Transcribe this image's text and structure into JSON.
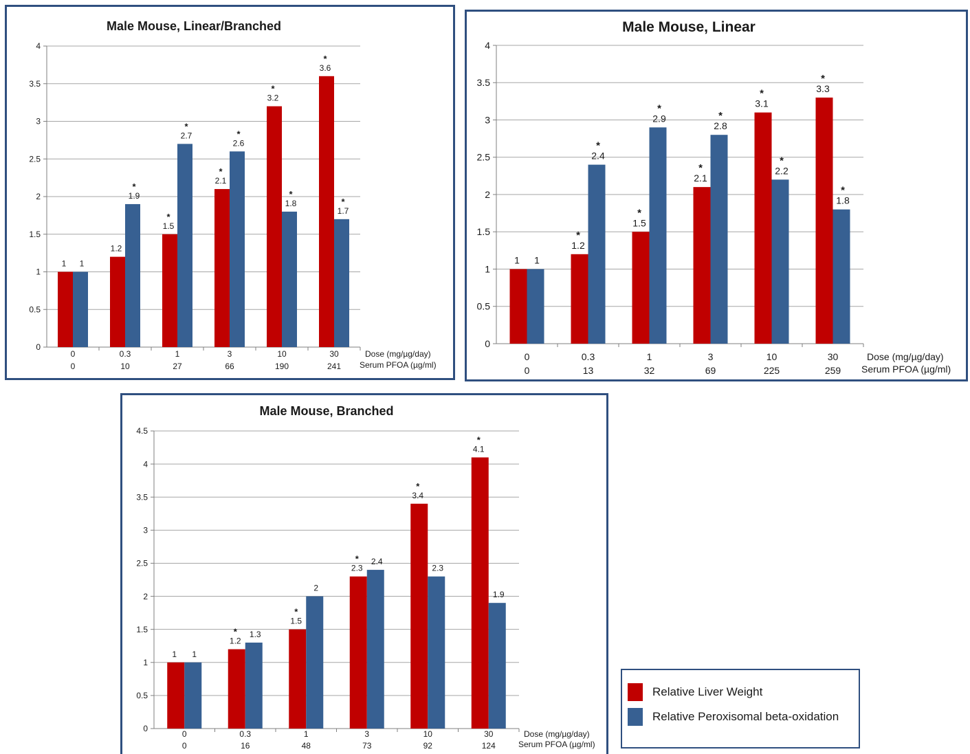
{
  "colors": {
    "liver": "#c00000",
    "perox": "#376092",
    "border": "#2f4f7f"
  },
  "legend": {
    "items": [
      {
        "label": "Relative Liver Weight",
        "color": "#c00000"
      },
      {
        "label": "Relative Peroxisomal beta-oxidation",
        "color": "#376092"
      }
    ]
  },
  "chart_data": [
    {
      "type": "bar",
      "title": "Male Mouse, Linear/Branched",
      "categories": [
        "0",
        "0.3",
        "1",
        "3",
        "10",
        "30"
      ],
      "categories2": [
        "0",
        "10",
        "27",
        "66",
        "190",
        "241"
      ],
      "row_label_1": "Dose (mg/µg/day)",
      "row_label_2": "Serum PFOA (µg/ml)",
      "ylim": [
        0,
        4
      ],
      "ystep": 0.5,
      "ytick_labels": [
        "0",
        "0.5",
        "1",
        "1.5",
        "2",
        "2.5",
        "3",
        "3.5",
        "4"
      ],
      "grid": true,
      "legend_position": "separate box, bottom-right",
      "series": [
        {
          "values": [
            1,
            1.2,
            1.5,
            2.1,
            3.2,
            3.6
          ],
          "labels": [
            "1",
            "1.2",
            "1.5",
            "2.1",
            "3.2",
            "3.6"
          ],
          "significant": [
            false,
            false,
            true,
            true,
            true,
            true
          ]
        },
        {
          "values": [
            1,
            1.9,
            2.7,
            2.6,
            1.8,
            1.7
          ],
          "labels": [
            "1",
            "1.9",
            "2.7",
            "2.6",
            "1.8",
            "1.7"
          ],
          "significant": [
            false,
            true,
            true,
            true,
            true,
            true
          ]
        }
      ]
    },
    {
      "type": "bar",
      "title": "Male Mouse, Linear",
      "categories": [
        "0",
        "0.3",
        "1",
        "3",
        "10",
        "30"
      ],
      "categories2": [
        "0",
        "13",
        "32",
        "69",
        "225",
        "259"
      ],
      "row_label_1": "Dose (mg/µg/day)",
      "row_label_2": "Serum PFOA (µg/ml)",
      "ylim": [
        0,
        4
      ],
      "ystep": 0.5,
      "ytick_labels": [
        "0",
        "0.5",
        "1",
        "1.5",
        "2",
        "2.5",
        "3",
        "3.5",
        "4"
      ],
      "grid": true,
      "legend_position": "separate box, bottom-right",
      "series": [
        {
          "values": [
            1,
            1.2,
            1.5,
            2.1,
            3.1,
            3.3
          ],
          "labels": [
            "1",
            "1.2",
            "1.5",
            "2.1",
            "3.1",
            "3.3"
          ],
          "significant": [
            false,
            true,
            true,
            true,
            true,
            true
          ]
        },
        {
          "values": [
            1,
            2.4,
            2.9,
            2.8,
            2.2,
            1.8
          ],
          "labels": [
            "1",
            "2.4",
            "2.9",
            "2.8",
            "2.2",
            "1.8"
          ],
          "significant": [
            false,
            true,
            true,
            true,
            true,
            true
          ]
        }
      ]
    },
    {
      "type": "bar",
      "title": "Male Mouse, Branched",
      "categories": [
        "0",
        "0.3",
        "1",
        "3",
        "10",
        "30"
      ],
      "categories2": [
        "0",
        "16",
        "48",
        "73",
        "92",
        "124"
      ],
      "row_label_1": "Dose (mg/µg/day)",
      "row_label_2": "Serum PFOA (µg/ml)",
      "ylim": [
        0,
        4.5
      ],
      "ystep": 0.5,
      "ytick_labels": [
        "0",
        "0.5",
        "1",
        "1.5",
        "2",
        "2.5",
        "3",
        "3.5",
        "4",
        "4.5"
      ],
      "grid": true,
      "legend_position": "separate box, bottom-right",
      "series": [
        {
          "values": [
            1,
            1.2,
            1.5,
            2.3,
            3.4,
            4.1
          ],
          "labels": [
            "1",
            "1.2",
            "1.5",
            "2.3",
            "3.4",
            "4.1"
          ],
          "significant": [
            false,
            true,
            true,
            true,
            true,
            true
          ]
        },
        {
          "values": [
            1,
            1.3,
            2,
            2.4,
            2.3,
            1.9
          ],
          "labels": [
            "1",
            "1.3",
            "2",
            "2.4",
            "2.3",
            "1.9"
          ],
          "significant": [
            false,
            false,
            false,
            false,
            false,
            false
          ]
        }
      ]
    }
  ]
}
